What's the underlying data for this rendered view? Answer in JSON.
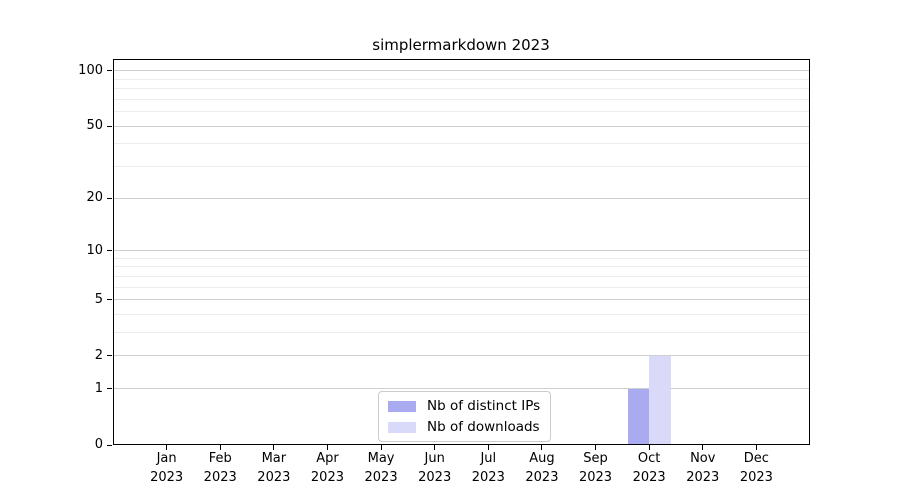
{
  "title": "simplermarkdown 2023",
  "legend": {
    "items": [
      {
        "label": "Nb of distinct IPs",
        "color": "#aaaaf0"
      },
      {
        "label": "Nb of downloads",
        "color": "#d9d9fa"
      }
    ]
  },
  "chart_data": {
    "type": "bar",
    "title": "simplermarkdown 2023",
    "categories": [
      "Jan 2023",
      "Feb 2023",
      "Mar 2023",
      "Apr 2023",
      "May 2023",
      "Jun 2023",
      "Jul 2023",
      "Aug 2023",
      "Sep 2023",
      "Oct 2023",
      "Nov 2023",
      "Dec 2023"
    ],
    "series": [
      {
        "name": "Nb of distinct IPs",
        "color": "#aaaaf0",
        "values": [
          0,
          0,
          0,
          0,
          0,
          0,
          0,
          0,
          0,
          1,
          0,
          0
        ]
      },
      {
        "name": "Nb of downloads",
        "color": "#d9d9fa",
        "values": [
          0,
          0,
          0,
          0,
          0,
          0,
          0,
          0,
          0,
          2,
          0,
          0
        ]
      }
    ],
    "xlabel": "",
    "ylabel": "",
    "yscale": "log1p",
    "ylim": [
      0,
      116
    ],
    "y_major_ticks": [
      0,
      1,
      2,
      5,
      10,
      20,
      50,
      100
    ],
    "y_minor_ticks": [
      3,
      4,
      6,
      7,
      8,
      9,
      30,
      40,
      60,
      70,
      80,
      90
    ],
    "grid": "horizontal",
    "legend_position": "inside bottom-center",
    "colors": {
      "major_grid": "#cfcfcf",
      "minor_grid": "#ececec",
      "spine": "#000000",
      "background": "#ffffff"
    }
  }
}
